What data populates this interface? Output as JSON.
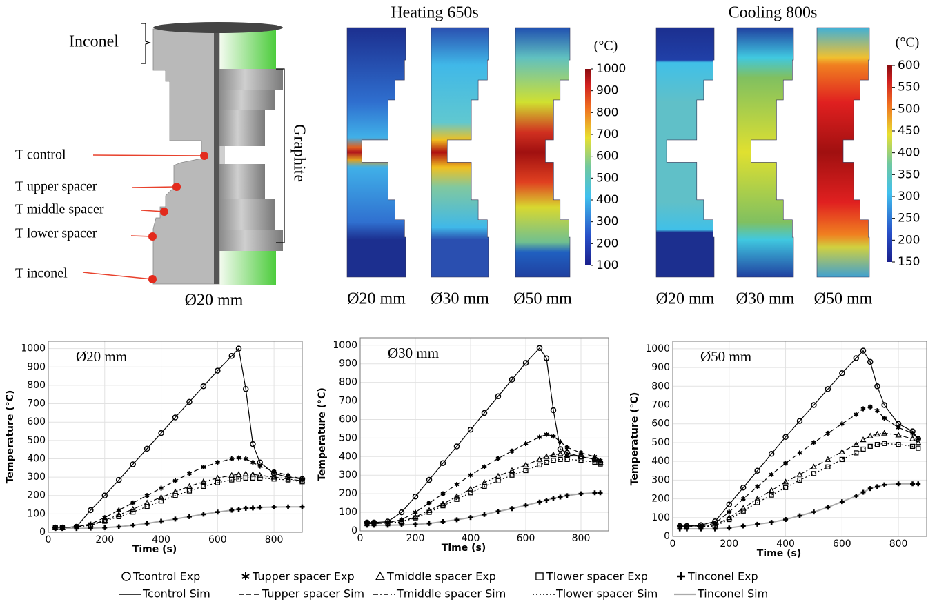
{
  "figure": {
    "specimen": {
      "inconel": "Inconel",
      "graphite": "Graphite",
      "sensors": [
        "T control",
        "T upper spacer",
        "T middle spacer",
        "T lower spacer",
        "T inconel"
      ],
      "diameter": "Ø20 mm"
    },
    "heating": {
      "title": "Heating 650s",
      "unit": "(°C)",
      "diameters": [
        "Ø20 mm",
        "Ø30 mm",
        "Ø50 mm"
      ],
      "colorbar": {
        "lim": [
          100,
          1000
        ],
        "ticks": [
          100,
          200,
          300,
          400,
          500,
          600,
          700,
          800,
          900,
          1000
        ]
      }
    },
    "cooling": {
      "title": "Cooling 800s",
      "unit": "(°C)",
      "diameters": [
        "Ø20 mm",
        "Ø30 mm",
        "Ø50 mm"
      ],
      "colorbar": {
        "lim": [
          150,
          600
        ],
        "ticks": [
          150,
          200,
          250,
          300,
          350,
          400,
          450,
          500,
          550,
          600
        ]
      }
    }
  },
  "chart_data": [
    {
      "type": "line",
      "title": "Ø20 mm",
      "x_label": "Time (s)",
      "y_label": "Temperature (°C)",
      "x": [
        25,
        50,
        100,
        150,
        200,
        250,
        300,
        350,
        400,
        450,
        500,
        550,
        600,
        650,
        675,
        700,
        725,
        750,
        800,
        850,
        900
      ],
      "xlim": [
        0,
        900
      ],
      "xticks": [
        0,
        200,
        400,
        600,
        800
      ],
      "ylim": [
        0,
        1040
      ],
      "yticks": [
        0,
        100,
        200,
        300,
        400,
        500,
        600,
        700,
        800,
        900,
        1000
      ],
      "grid": true,
      "series": [
        {
          "name": "Tcontrol Exp",
          "sim_name": "Tcontrol Sim",
          "marker": "circle",
          "dash": "solid",
          "color": "#000000",
          "line_color": "#000000",
          "values": [
            25,
            25,
            30,
            120,
            200,
            285,
            370,
            455,
            540,
            625,
            710,
            795,
            880,
            960,
            1000,
            780,
            480,
            380,
            320,
            300,
            290
          ]
        },
        {
          "name": "Tupper spacer Exp",
          "sim_name": "Tupper spacer Sim",
          "marker": "asterisk",
          "dash": "dashed",
          "color": "#000000",
          "line_color": "#000000",
          "values": [
            25,
            25,
            30,
            45,
            80,
            120,
            160,
            200,
            240,
            280,
            320,
            355,
            380,
            400,
            405,
            400,
            380,
            360,
            330,
            310,
            290
          ]
        },
        {
          "name": "Tmiddle spacer Exp",
          "sim_name": "Tmiddle spacer Sim",
          "marker": "triangle",
          "dash": "dashdot",
          "color": "#000000",
          "line_color": "#000000",
          "values": [
            25,
            25,
            28,
            40,
            65,
            95,
            125,
            160,
            190,
            220,
            250,
            275,
            295,
            310,
            315,
            318,
            315,
            310,
            300,
            290,
            280
          ]
        },
        {
          "name": "Tlower spacer Exp",
          "sim_name": "Tlower spacer Sim",
          "marker": "square",
          "dash": "dotted",
          "color": "#000000",
          "line_color": "#000000",
          "values": [
            25,
            25,
            28,
            38,
            60,
            85,
            110,
            140,
            170,
            200,
            225,
            250,
            270,
            285,
            290,
            295,
            295,
            295,
            290,
            285,
            275
          ]
        },
        {
          "name": "Tinconel Exp",
          "sim_name": "Tinconel Sim",
          "marker": "plus",
          "dash": "solid",
          "color": "#000000",
          "line_color": "#aaaaaa",
          "values": [
            20,
            20,
            20,
            22,
            25,
            30,
            38,
            48,
            60,
            72,
            85,
            98,
            110,
            120,
            125,
            130,
            132,
            135,
            137,
            138,
            138
          ]
        }
      ]
    },
    {
      "type": "line",
      "title": "Ø30 mm",
      "x_label": "Time (s)",
      "y_label": "Temperature (°C)",
      "x": [
        25,
        50,
        100,
        150,
        200,
        250,
        300,
        350,
        400,
        450,
        500,
        550,
        600,
        650,
        675,
        700,
        725,
        750,
        800,
        850,
        870
      ],
      "xlim": [
        0,
        900
      ],
      "xticks": [
        0,
        200,
        400,
        600,
        800
      ],
      "ylim": [
        0,
        1040
      ],
      "yticks": [
        0,
        100,
        200,
        300,
        400,
        500,
        600,
        700,
        800,
        900,
        1000
      ],
      "grid": true,
      "series": [
        {
          "marker": "circle",
          "dash": "solid",
          "color": "#000000",
          "line_color": "#000000",
          "values": [
            45,
            45,
            50,
            100,
            185,
            275,
            365,
            455,
            545,
            635,
            725,
            815,
            905,
            985,
            930,
            650,
            440,
            420,
            400,
            385,
            370
          ]
        },
        {
          "marker": "asterisk",
          "dash": "dashed",
          "color": "#000000",
          "line_color": "#000000",
          "values": [
            40,
            40,
            45,
            60,
            100,
            150,
            200,
            250,
            300,
            345,
            390,
            430,
            470,
            505,
            520,
            510,
            480,
            450,
            420,
            400,
            380
          ]
        },
        {
          "marker": "triangle",
          "dash": "dashdot",
          "color": "#000000",
          "line_color": "#000000",
          "values": [
            40,
            40,
            42,
            50,
            75,
            110,
            145,
            185,
            225,
            260,
            295,
            325,
            355,
            385,
            400,
            410,
            415,
            410,
            400,
            385,
            370
          ]
        },
        {
          "marker": "square",
          "dash": "dotted",
          "color": "#000000",
          "line_color": "#000000",
          "values": [
            40,
            40,
            42,
            48,
            70,
            100,
            135,
            170,
            205,
            240,
            270,
            300,
            325,
            355,
            370,
            380,
            385,
            385,
            380,
            370,
            360
          ]
        },
        {
          "marker": "plus",
          "dash": "solid",
          "color": "#000000",
          "line_color": "#aaaaaa",
          "values": [
            30,
            30,
            30,
            32,
            35,
            40,
            50,
            60,
            72,
            88,
            105,
            120,
            138,
            155,
            165,
            175,
            182,
            190,
            200,
            205,
            205
          ]
        }
      ]
    },
    {
      "type": "line",
      "title": "Ø50 mm",
      "x_label": "Time (s)",
      "y_label": "Temperature (°C)",
      "x": [
        25,
        50,
        100,
        150,
        200,
        250,
        300,
        350,
        400,
        450,
        500,
        550,
        600,
        650,
        675,
        700,
        725,
        750,
        800,
        850,
        870
      ],
      "xlim": [
        0,
        900
      ],
      "xticks": [
        0,
        200,
        400,
        600,
        800
      ],
      "ylim": [
        0,
        1040
      ],
      "yticks": [
        0,
        100,
        200,
        300,
        400,
        500,
        600,
        700,
        800,
        900,
        1000
      ],
      "grid": true,
      "series": [
        {
          "marker": "circle",
          "dash": "solid",
          "color": "#000000",
          "line_color": "#000000",
          "values": [
            55,
            55,
            60,
            80,
            170,
            260,
            350,
            440,
            530,
            615,
            700,
            785,
            870,
            950,
            990,
            930,
            800,
            700,
            600,
            560,
            520
          ]
        },
        {
          "marker": "asterisk",
          "dash": "dashed",
          "color": "#000000",
          "line_color": "#000000",
          "values": [
            55,
            55,
            55,
            70,
            130,
            200,
            265,
            330,
            390,
            445,
            500,
            550,
            600,
            650,
            680,
            690,
            670,
            630,
            580,
            550,
            520
          ]
        },
        {
          "marker": "triangle",
          "dash": "dashdot",
          "color": "#000000",
          "line_color": "#000000",
          "values": [
            50,
            50,
            52,
            60,
            100,
            150,
            200,
            245,
            290,
            330,
            370,
            410,
            450,
            490,
            515,
            535,
            545,
            550,
            540,
            520,
            500
          ]
        },
        {
          "marker": "square",
          "dash": "dotted",
          "color": "#000000",
          "line_color": "#000000",
          "values": [
            50,
            50,
            50,
            55,
            90,
            135,
            180,
            220,
            260,
            300,
            335,
            370,
            410,
            445,
            465,
            480,
            490,
            495,
            490,
            480,
            470
          ]
        },
        {
          "marker": "plus",
          "dash": "solid",
          "color": "#000000",
          "line_color": "#aaaaaa",
          "values": [
            40,
            40,
            40,
            40,
            45,
            55,
            65,
            75,
            90,
            110,
            130,
            155,
            185,
            215,
            235,
            255,
            265,
            275,
            280,
            280,
            280
          ]
        }
      ]
    }
  ]
}
